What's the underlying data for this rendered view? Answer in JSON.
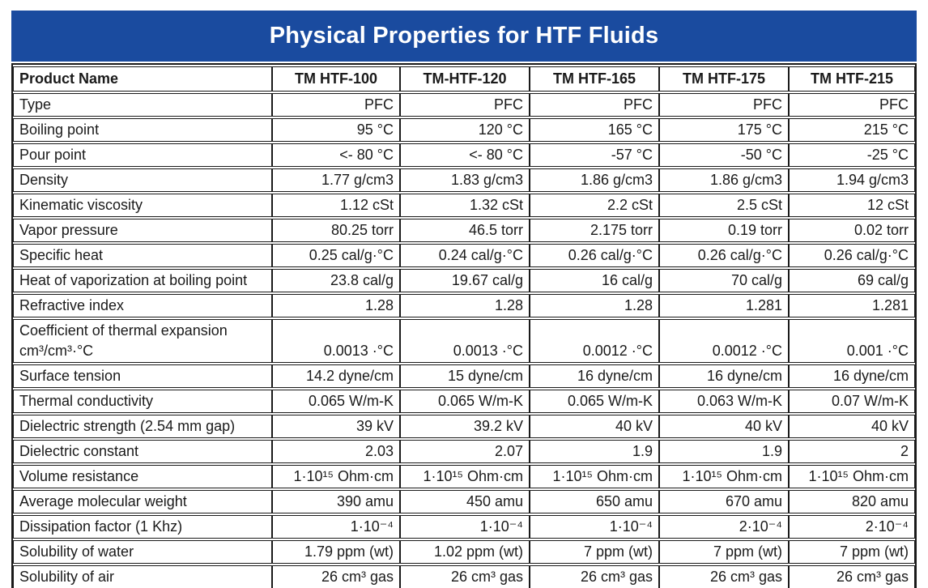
{
  "title": "Physical Properties for HTF Fluids",
  "colors": {
    "banner_bg": "#1a4b9f",
    "banner_text": "#ffffff",
    "border": "#1a1a1a",
    "body_bg": "#ffffff"
  },
  "table": {
    "header": [
      "Product Name",
      "TM HTF-100",
      "TM-HTF-120",
      "TM HTF-165",
      "TM HTF-175",
      "TM HTF-215"
    ],
    "rows": [
      {
        "label": "Type",
        "values": [
          "PFC",
          "PFC",
          "PFC",
          "PFC",
          "PFC"
        ]
      },
      {
        "label": "Boiling point",
        "values": [
          "95 °C",
          "120 °C",
          "165 °C",
          "175 °C",
          "215 °C"
        ]
      },
      {
        "label": "Pour point",
        "values": [
          "<- 80 °C",
          "<- 80 °C",
          "-57 °C",
          "-50 °C",
          "-25 °C"
        ]
      },
      {
        "label": "Density",
        "values": [
          "1.77 g/cm3",
          "1.83 g/cm3",
          "1.86 g/cm3",
          "1.86 g/cm3",
          "1.94 g/cm3"
        ]
      },
      {
        "label": "Kinematic viscosity",
        "values": [
          "1.12 cSt",
          "1.32 cSt",
          "2.2 cSt",
          "2.5 cSt",
          "12 cSt"
        ]
      },
      {
        "label": "Vapor pressure",
        "values": [
          "80.25 torr",
          "46.5 torr",
          "2.175 torr",
          "0.19 torr",
          "0.02 torr"
        ]
      },
      {
        "label": "Specific heat",
        "values": [
          "0.25 cal/g·°C",
          "0.24 cal/g·°C",
          "0.26 cal/g·°C",
          "0.26 cal/g·°C",
          "0.26 cal/g·°C"
        ]
      },
      {
        "label": "Heat of vaporization at boiling point",
        "values": [
          "23.8 cal/g",
          "19.67 cal/g",
          "16 cal/g",
          "70 cal/g",
          "69 cal/g"
        ]
      },
      {
        "label": "Refractive index",
        "values": [
          "1.28",
          "1.28",
          "1.28",
          "1.281",
          "1.281"
        ]
      },
      {
        "label": "Coefficient of thermal expansion cm³/cm³·°C",
        "values": [
          "0.0013 ·°C",
          "0.0013 ·°C",
          "0.0012 ·°C",
          "0.0012 ·°C",
          "0.001 ·°C"
        ]
      },
      {
        "label": "Surface tension",
        "values": [
          "14.2 dyne/cm",
          "15 dyne/cm",
          "16 dyne/cm",
          "16 dyne/cm",
          "16 dyne/cm"
        ]
      },
      {
        "label": "Thermal conductivity",
        "values": [
          "0.065 W/m-K",
          "0.065 W/m-K",
          "0.065 W/m-K",
          "0.063 W/m-K",
          "0.07 W/m-K"
        ]
      },
      {
        "label": "Dielectric strength (2.54 mm gap)",
        "values": [
          "39 kV",
          "39.2 kV",
          "40 kV",
          "40 kV",
          "40 kV"
        ]
      },
      {
        "label": "Dielectric constant",
        "values": [
          "2.03",
          "2.07",
          "1.9",
          "1.9",
          "2"
        ]
      },
      {
        "label": "Volume resistance",
        "values": [
          "1·10¹⁵ Ohm·cm",
          "1·10¹⁵ Ohm·cm",
          "1·10¹⁵ Ohm·cm",
          "1·10¹⁵ Ohm·cm",
          "1·10¹⁵ Ohm·cm"
        ]
      },
      {
        "label": "Average molecular weight",
        "values": [
          "390 amu",
          "450 amu",
          "650 amu",
          "670 amu",
          "820 amu"
        ]
      },
      {
        "label": "Dissipation factor (1 Khz)",
        "values": [
          "1·10⁻⁴",
          "1·10⁻⁴",
          "1·10⁻⁴",
          "2·10⁻⁴",
          "2·10⁻⁴"
        ]
      },
      {
        "label": "Solubility of water",
        "values": [
          "1.79 ppm (wt)",
          "1.02 ppm (wt)",
          "7 ppm (wt)",
          "7 ppm (wt)",
          "7 ppm (wt)"
        ]
      },
      {
        "label": "Solubility of air",
        "values": [
          "26 cm³ gas",
          "26 cm³ gas",
          "26 cm³ gas",
          "26 cm³ gas",
          "26 cm³ gas"
        ]
      }
    ]
  }
}
